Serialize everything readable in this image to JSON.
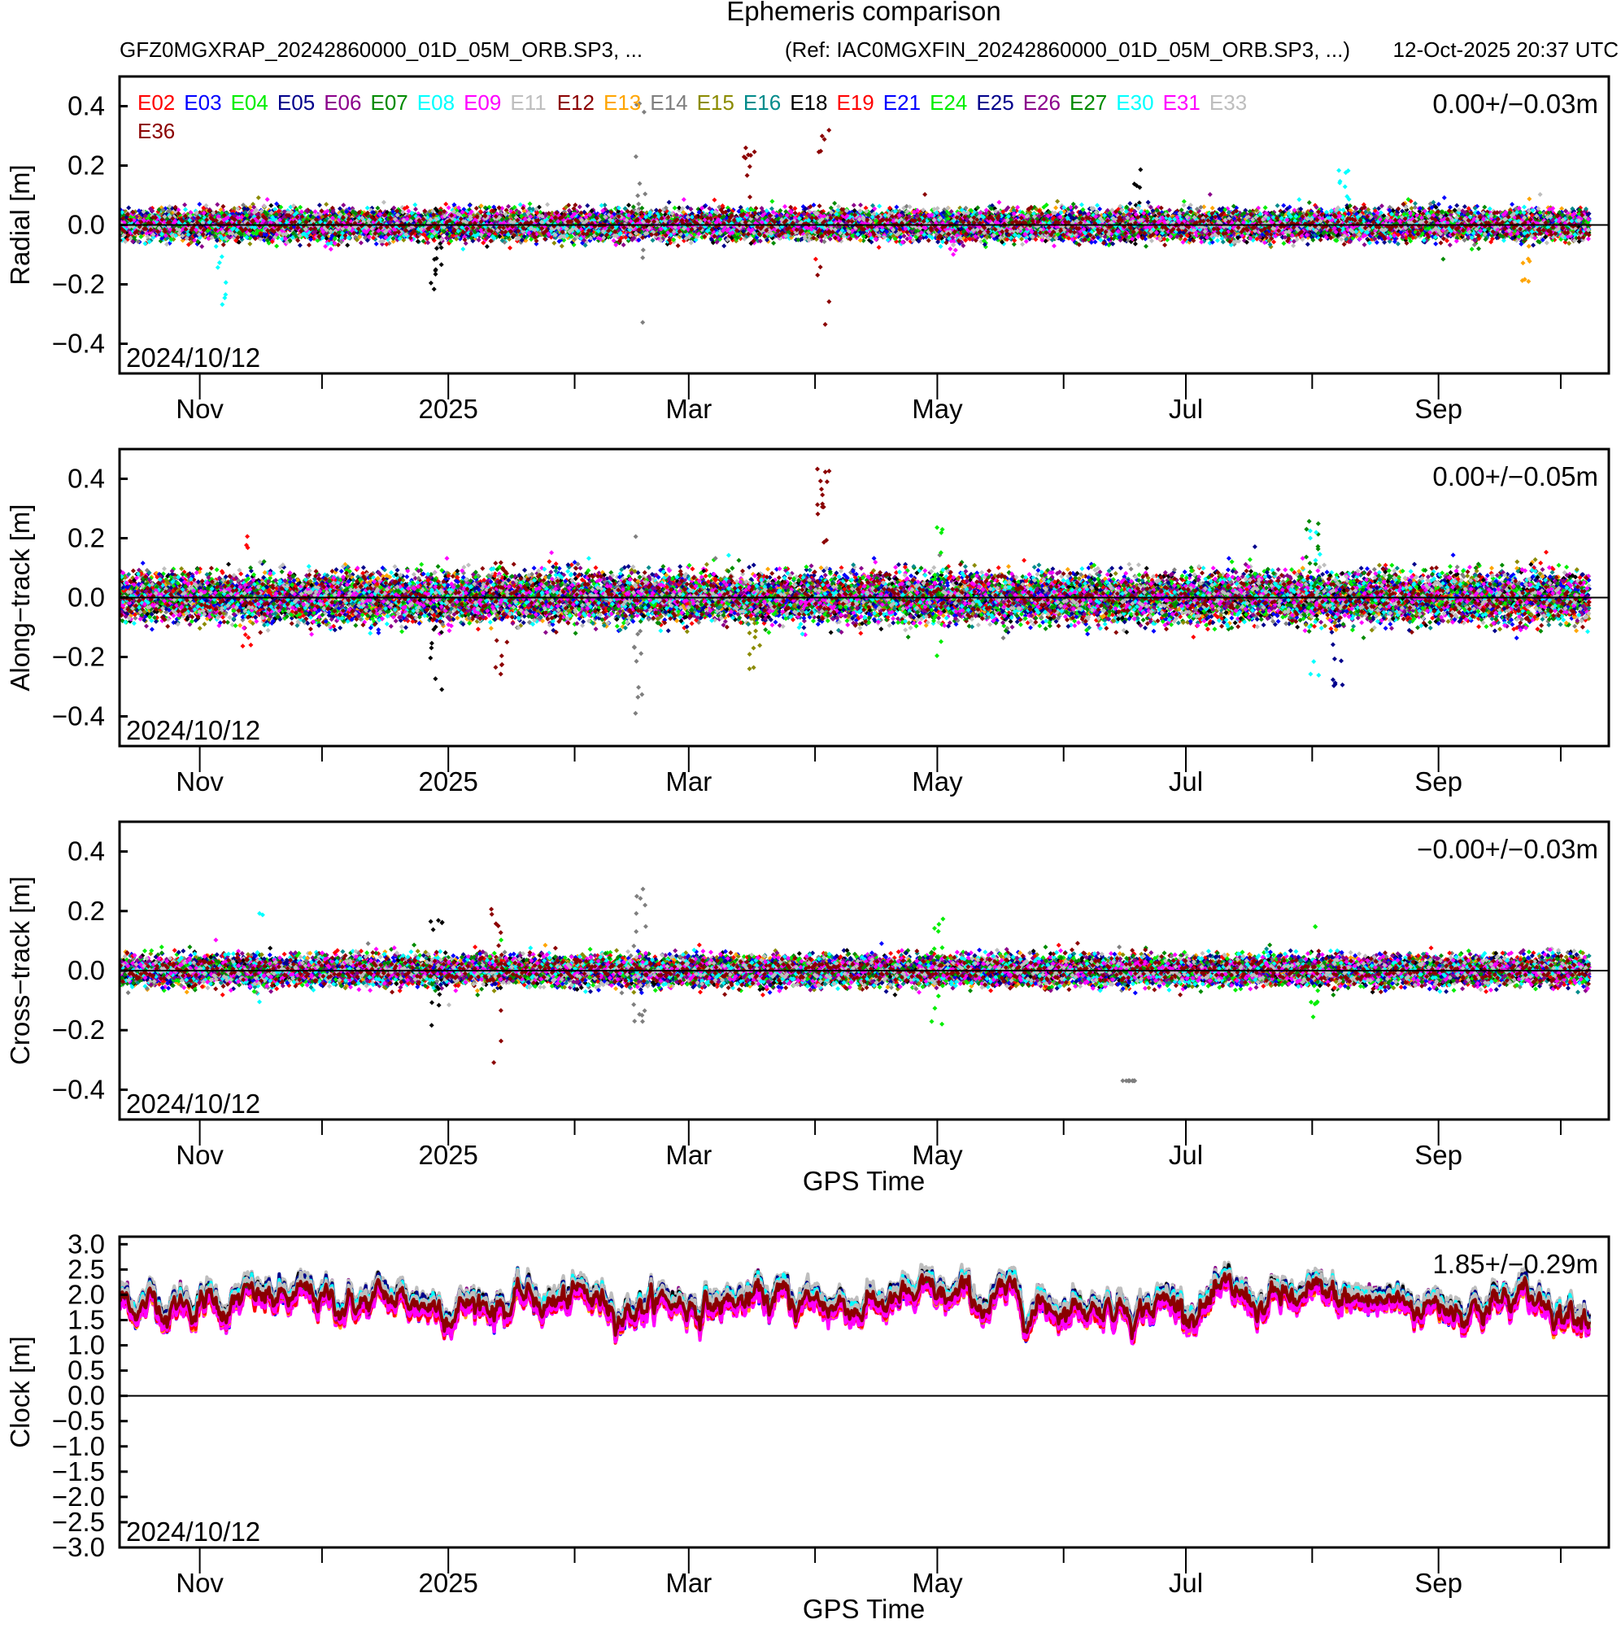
{
  "header": {
    "title": "Ephemeris comparison",
    "file": "GFZ0MGXRAP_20242860000_01D_05M_ORB.SP3, ...",
    "reference": "(Ref: IAC0MGXFIN_20242860000_01D_05M_ORB.SP3, ...)",
    "timestamp": "12-Oct-2025 20:37 UTC"
  },
  "chart_data": {
    "type": "scatter",
    "start_date": "2024/10/12",
    "x_axis": {
      "xlabel": "GPS Time",
      "start_day_offset": 0,
      "end_day_offset": 361,
      "major_ticks": [
        {
          "label": "Nov",
          "day": 20
        },
        {
          "label": "2025",
          "day": 81
        },
        {
          "label": "Mar",
          "day": 140
        },
        {
          "label": "May",
          "day": 201
        },
        {
          "label": "Jul",
          "day": 262
        },
        {
          "label": "Sep",
          "day": 324
        }
      ],
      "minor_ticks_days": [
        50,
        112,
        171,
        232,
        293,
        354
      ]
    },
    "legend": {
      "placement": "top-left",
      "series": [
        {
          "name": "E02",
          "color": "#ff0000"
        },
        {
          "name": "E03",
          "color": "#0000ff"
        },
        {
          "name": "E04",
          "color": "#00ee00"
        },
        {
          "name": "E05",
          "color": "#00008b"
        },
        {
          "name": "E06",
          "color": "#8b008b"
        },
        {
          "name": "E07",
          "color": "#008b00"
        },
        {
          "name": "E08",
          "color": "#00ffff"
        },
        {
          "name": "E09",
          "color": "#ff00ff"
        },
        {
          "name": "E11",
          "color": "#bebebe"
        },
        {
          "name": "E12",
          "color": "#8b0000"
        },
        {
          "name": "E13",
          "color": "#ffa500"
        },
        {
          "name": "E14",
          "color": "#7f7f7f"
        },
        {
          "name": "E15",
          "color": "#8b8b00"
        },
        {
          "name": "E16",
          "color": "#008b8b"
        },
        {
          "name": "E18",
          "color": "#000000"
        },
        {
          "name": "E19",
          "color": "#ff0000"
        },
        {
          "name": "E21",
          "color": "#0000ff"
        },
        {
          "name": "E24",
          "color": "#00ee00"
        },
        {
          "name": "E25",
          "color": "#00008b"
        },
        {
          "name": "E26",
          "color": "#8b008b"
        },
        {
          "name": "E27",
          "color": "#008b00"
        },
        {
          "name": "E30",
          "color": "#00ffff"
        },
        {
          "name": "E31",
          "color": "#ff00ff"
        },
        {
          "name": "E33",
          "color": "#bebebe"
        },
        {
          "name": "E36",
          "color": "#8b0000"
        }
      ]
    },
    "panels": [
      {
        "id": "radial",
        "ylabel": "Radial [m]",
        "ylim": [
          -0.5,
          0.5
        ],
        "yticks": [
          "0.4",
          "0.2",
          "0.0",
          "−0.2",
          "−0.4"
        ],
        "ytick_values": [
          0.4,
          0.2,
          0.0,
          -0.2,
          -0.4
        ],
        "stats": "0.00+/−0.03m",
        "mean": 0.0,
        "sd": 0.03,
        "show_xlabel": false,
        "outliers": [
          {
            "sat": "E14",
            "day": 128,
            "min": -0.33,
            "max": 0.48
          },
          {
            "sat": "E36",
            "day": 173,
            "min": -0.34,
            "max": 0.32
          },
          {
            "sat": "E12",
            "day": 155,
            "min": -0.05,
            "max": 0.28
          },
          {
            "sat": "E18",
            "day": 78,
            "min": -0.24,
            "max": 0.0
          },
          {
            "sat": "E18",
            "day": 250,
            "min": -0.1,
            "max": 0.19
          },
          {
            "sat": "E08",
            "day": 25,
            "min": -0.35,
            "max": 0.12
          },
          {
            "sat": "E09",
            "day": 205,
            "min": -0.1,
            "max": 0.0
          },
          {
            "sat": "E13",
            "day": 345,
            "min": -0.24,
            "max": 0.1
          },
          {
            "sat": "E30",
            "day": 301,
            "min": -0.05,
            "max": 0.19
          }
        ]
      },
      {
        "id": "along",
        "ylabel": "Along−track [m]",
        "ylim": [
          -0.5,
          0.5
        ],
        "yticks": [
          "0.4",
          "0.2",
          "0.0",
          "−0.2",
          "−0.4"
        ],
        "ytick_values": [
          0.4,
          0.2,
          0.0,
          -0.2,
          -0.4
        ],
        "stats": "0.00+/−0.05m",
        "mean": 0.0,
        "sd": 0.05,
        "show_xlabel": false,
        "outliers": [
          {
            "sat": "E36",
            "day": 173,
            "min": 0.18,
            "max": 0.45
          },
          {
            "sat": "E14",
            "day": 128,
            "min": -0.43,
            "max": 0.23
          },
          {
            "sat": "E24",
            "day": 201,
            "min": -0.22,
            "max": 0.25
          },
          {
            "sat": "E27",
            "day": 293,
            "min": -0.12,
            "max": 0.27
          },
          {
            "sat": "E30",
            "day": 294,
            "min": -0.29,
            "max": 0.32
          },
          {
            "sat": "E02",
            "day": 32,
            "min": -0.17,
            "max": 0.21
          },
          {
            "sat": "E36",
            "day": 94,
            "min": -0.29,
            "max": 0.13
          },
          {
            "sat": "E18",
            "day": 78,
            "min": -0.32,
            "max": 0.05
          },
          {
            "sat": "E05",
            "day": 299,
            "min": -0.3,
            "max": 0.0
          },
          {
            "sat": "E15",
            "day": 156,
            "min": -0.24,
            "max": 0.0
          }
        ]
      },
      {
        "id": "cross",
        "ylabel": "Cross−track [m]",
        "ylim": [
          -0.5,
          0.5
        ],
        "yticks": [
          "0.4",
          "0.2",
          "0.0",
          "−0.2",
          "−0.4"
        ],
        "ytick_values": [
          0.4,
          0.2,
          0.0,
          -0.2,
          -0.4
        ],
        "stats": "−0.00+/−0.03m",
        "mean": 0.0,
        "sd": 0.03,
        "show_xlabel": true,
        "outliers": [
          {
            "sat": "E36",
            "day": 93,
            "min": -0.33,
            "max": 0.35
          },
          {
            "sat": "E14",
            "day": 128,
            "min": -0.19,
            "max": 0.28
          },
          {
            "sat": "E08",
            "day": 34,
            "min": -0.12,
            "max": 0.2
          },
          {
            "sat": "E24",
            "day": 201,
            "min": -0.19,
            "max": 0.21
          },
          {
            "sat": "E24",
            "day": 293,
            "min": -0.17,
            "max": 0.16
          },
          {
            "sat": "E18",
            "day": 78,
            "min": -0.19,
            "max": 0.17
          },
          {
            "sat": "E14",
            "day": 248,
            "min": -0.37,
            "max": -0.37
          }
        ]
      },
      {
        "id": "clock",
        "ylabel": "Clock [m]",
        "ylim": [
          -3.0,
          3.15
        ],
        "yticks": [
          "3.0",
          "2.5",
          "2.0",
          "1.5",
          "1.0",
          "0.5",
          "0.0",
          "−0.5",
          "−1.0",
          "−1.5",
          "−2.0",
          "−2.5",
          "−3.0"
        ],
        "ytick_values": [
          3.0,
          2.5,
          2.0,
          1.5,
          1.0,
          0.5,
          0.0,
          -0.5,
          -1.0,
          -1.5,
          -2.0,
          -2.5,
          -3.0
        ],
        "stats": "1.85+/−0.29m",
        "mean": 1.85,
        "sd": 0.29,
        "show_xlabel": true,
        "outliers": [
          {
            "sat": "E14",
            "day": 128,
            "min": 0.7,
            "max": 2.2
          }
        ]
      }
    ]
  }
}
